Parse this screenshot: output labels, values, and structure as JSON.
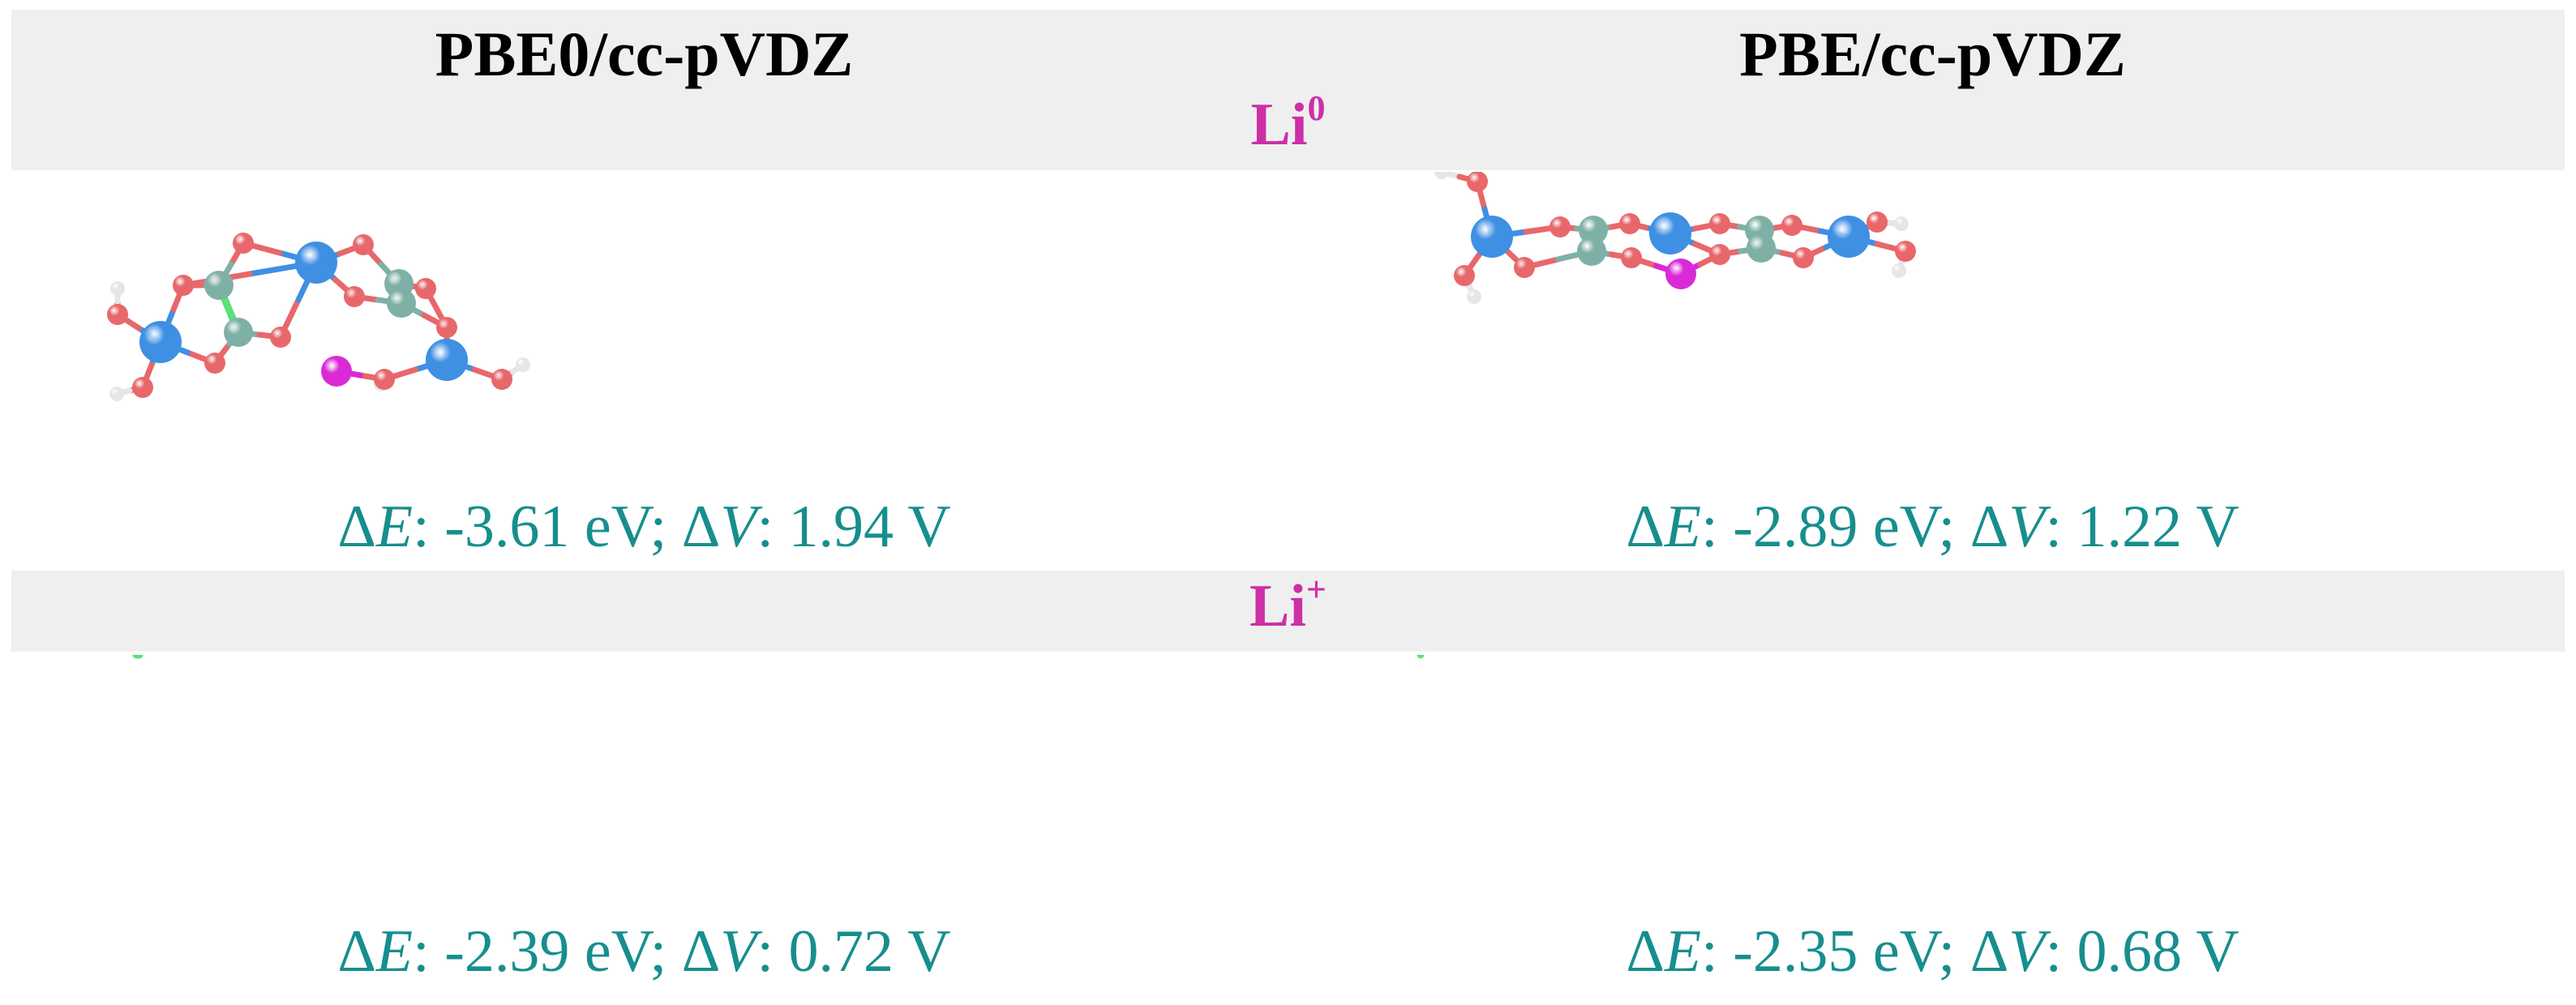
{
  "headers": [
    "PBE0/cc-pVDZ",
    "PBE/cc-pVDZ"
  ],
  "rows": [
    {
      "label_base": "Li",
      "label_sup": "0",
      "captions": [
        {
          "dE": "-3.61 eV",
          "dV": "1.94 V"
        },
        {
          "dE": "-2.89 eV",
          "dV": "1.22 V"
        }
      ]
    },
    {
      "label_base": "Li",
      "label_sup": "+",
      "captions": [
        {
          "dE": "-2.39 eV",
          "dV": "0.72 V"
        },
        {
          "dE": "-2.35 eV",
          "dV": "0.68 V"
        }
      ]
    }
  ],
  "caption_parts": {
    "delta": "Δ",
    "E": "E",
    "V": "V",
    "colon": ": ",
    "sep": "; "
  },
  "colors": {
    "oxygen": "#e8676a",
    "hydrogen": "#e6e6e6",
    "carbon": "#7fb0a6",
    "metal": "#3f8fe3",
    "lithium": "#d92ad6",
    "cc_bond": "#5be07a",
    "label": "#cc2fa6",
    "caption": "#178e8e"
  }
}
